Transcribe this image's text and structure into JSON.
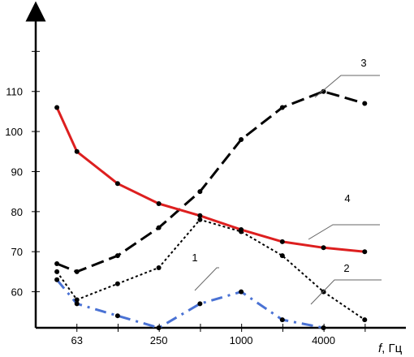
{
  "chart_data": {
    "type": "line",
    "title": "",
    "xlabel": "f, Гц",
    "ylabel": "",
    "x_scale": "log2",
    "x_tick_labels": [
      "63",
      "250",
      "1000",
      "4000"
    ],
    "y_tick_labels": [
      "60",
      "70",
      "80",
      "90",
      "100",
      "110"
    ],
    "xlim": [
      31.5,
      16000
    ],
    "ylim": [
      51,
      130
    ],
    "grid": false,
    "series": [
      {
        "name": "1",
        "color": "#4a72d4",
        "style": "dash-dot",
        "points": [
          [
            45,
            63
          ],
          [
            63,
            57
          ],
          [
            125,
            54
          ],
          [
            250,
            51
          ],
          [
            500,
            57
          ],
          [
            1000,
            60
          ],
          [
            2000,
            53
          ],
          [
            4000,
            51
          ]
        ]
      },
      {
        "name": "2",
        "color": "#000000",
        "style": "dotted",
        "points": [
          [
            45,
            65
          ],
          [
            63,
            58
          ],
          [
            125,
            62
          ],
          [
            250,
            66
          ],
          [
            500,
            78
          ],
          [
            1000,
            75
          ],
          [
            2000,
            69
          ],
          [
            4000,
            60
          ],
          [
            8000,
            53
          ]
        ]
      },
      {
        "name": "3",
        "color": "#000000",
        "style": "long-dash",
        "points": [
          [
            45,
            67
          ],
          [
            63,
            65
          ],
          [
            125,
            69
          ],
          [
            250,
            76
          ],
          [
            500,
            85
          ],
          [
            1000,
            98
          ],
          [
            2000,
            106
          ],
          [
            4000,
            110
          ],
          [
            8000,
            107
          ]
        ]
      },
      {
        "name": "4",
        "color": "#dd1f1f",
        "style": "solid",
        "points": [
          [
            45,
            106
          ],
          [
            63,
            95
          ],
          [
            125,
            87
          ],
          [
            250,
            82
          ],
          [
            500,
            79
          ],
          [
            1000,
            75.5
          ],
          [
            2000,
            72.5
          ],
          [
            4000,
            71
          ],
          [
            8000,
            70
          ]
        ]
      }
    ]
  }
}
